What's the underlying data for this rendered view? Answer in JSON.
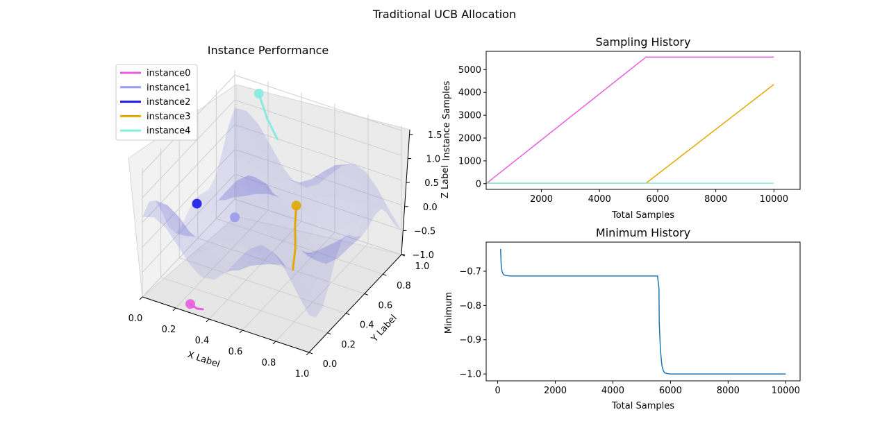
{
  "figure": {
    "suptitle": "Traditional UCB Allocation"
  },
  "chart_data": [
    {
      "type": "surface3d",
      "title": "Instance Performance",
      "xlabel": "X Label",
      "ylabel": "Y Label",
      "zlabel": "Z Label",
      "xticks": [
        "0.0",
        "0.2",
        "0.4",
        "0.6",
        "0.8",
        "1.0"
      ],
      "yticks": [
        "0.0",
        "0.2",
        "0.4",
        "0.6",
        "0.8",
        "1.0"
      ],
      "zticks": [
        "−1.0",
        "−0.5",
        "0.0",
        "0.5",
        "1.0",
        "1.5"
      ],
      "xlim": [
        0,
        1
      ],
      "ylim": [
        0,
        1
      ],
      "zlim": [
        -1.0,
        1.6
      ],
      "surface_color": "#c8c8f0",
      "legend_position": "upper-left",
      "series": [
        {
          "name": "instance0",
          "color": "#e85de0",
          "trajectory": [
            [
              0.26,
              0.05,
              -0.95
            ],
            [
              0.3,
              0.05,
              -1.0
            ],
            [
              0.33,
              0.06,
              -1.0
            ]
          ]
        },
        {
          "name": "instance1",
          "color": "#9a9af0",
          "trajectory": [
            [
              0.25,
              0.55,
              -0.2
            ]
          ]
        },
        {
          "name": "instance2",
          "color": "#1818e8",
          "trajectory": [
            [
              0.05,
              0.5,
              -0.05
            ]
          ]
        },
        {
          "name": "instance3",
          "color": "#e0a800",
          "trajectory": [
            [
              0.48,
              0.8,
              -0.2
            ],
            [
              0.5,
              0.75,
              -0.5
            ],
            [
              0.53,
              0.7,
              -0.8
            ],
            [
              0.57,
              0.6,
              -1.0
            ]
          ]
        },
        {
          "name": "instance4",
          "color": "#86ece0",
          "trajectory": [
            [
              0.2,
              0.9,
              1.55
            ],
            [
              0.25,
              0.9,
              1.1
            ],
            [
              0.3,
              0.92,
              0.7
            ]
          ]
        }
      ]
    },
    {
      "type": "line",
      "title": "Sampling History",
      "xlabel": "Total Samples",
      "ylabel": "Instance Samples",
      "xlim": [
        100,
        10900
      ],
      "ylim": [
        -250,
        5800
      ],
      "xticks": [
        "2000",
        "4000",
        "6000",
        "8000",
        "10000"
      ],
      "yticks": [
        "0",
        "1000",
        "2000",
        "3000",
        "4000",
        "5000"
      ],
      "series": [
        {
          "name": "instance0",
          "color": "#e85de0",
          "x": [
            100,
            5600,
            10000
          ],
          "y": [
            0,
            5550,
            5550
          ]
        },
        {
          "name": "instance3",
          "color": "#e0a800",
          "x": [
            100,
            5600,
            10000
          ],
          "y": [
            20,
            20,
            4350
          ]
        },
        {
          "name": "instance4",
          "color": "#86ece0",
          "x": [
            100,
            10000
          ],
          "y": [
            20,
            20
          ]
        }
      ]
    },
    {
      "type": "line",
      "title": "Minimum History",
      "xlabel": "Total Samples",
      "ylabel": "Minimum",
      "xlim": [
        -400,
        10500
      ],
      "ylim": [
        -1.02,
        -0.615
      ],
      "xticks": [
        "0",
        "2000",
        "4000",
        "6000",
        "8000",
        "10000"
      ],
      "yticks": [
        "−0.7",
        "−0.8",
        "−0.9",
        "−1.0"
      ],
      "series": [
        {
          "color": "#1f77b4",
          "x": [
            100,
            120,
            150,
            200,
            300,
            500,
            1000,
            3000,
            5550,
            5600,
            5610,
            5650,
            5700,
            5750,
            5800,
            5900,
            6000,
            7000,
            10000
          ],
          "y": [
            -0.635,
            -0.68,
            -0.7,
            -0.71,
            -0.713,
            -0.714,
            -0.714,
            -0.714,
            -0.714,
            -0.75,
            -0.85,
            -0.93,
            -0.975,
            -0.99,
            -0.997,
            -0.999,
            -1.0,
            -1.0,
            -1.0
          ]
        }
      ]
    }
  ]
}
